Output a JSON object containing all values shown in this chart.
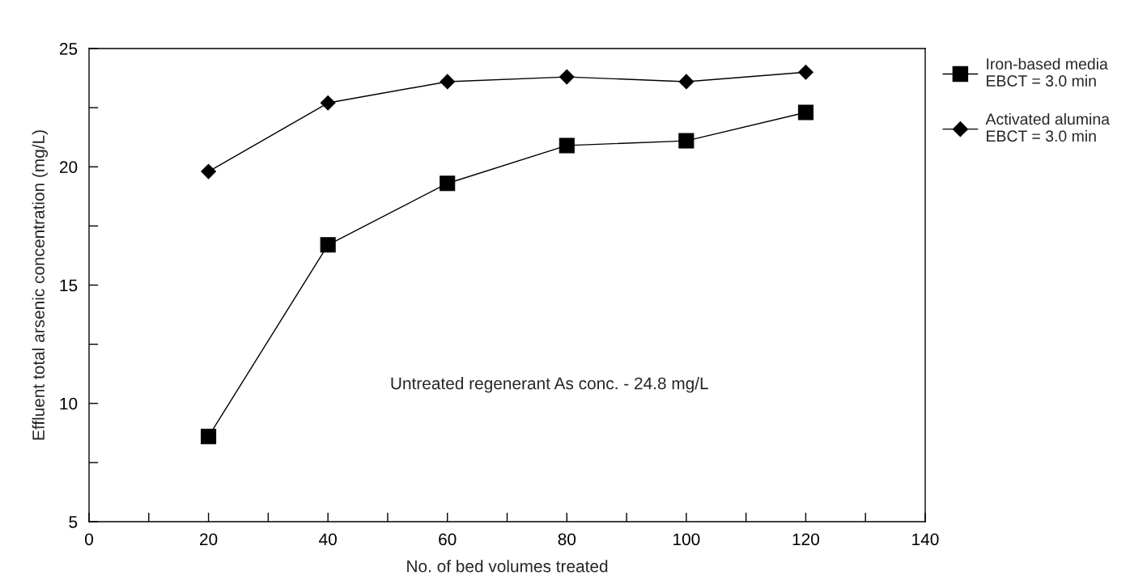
{
  "chart_data": {
    "type": "line",
    "xlabel": "No. of bed volumes treated",
    "ylabel": "Effluent total arsenic concentration (mg/L)",
    "x": [
      20,
      40,
      60,
      80,
      100,
      120
    ],
    "series": [
      {
        "name": "Iron-based media\nEBCT = 3.0 min",
        "color": "#000000",
        "marker": "square",
        "values": [
          8.6,
          16.7,
          19.3,
          20.9,
          21.1,
          22.3
        ]
      },
      {
        "name": "Activated alumina\nEBCT = 3.0 min",
        "color": "#000000",
        "marker": "diamond",
        "values": [
          19.8,
          22.7,
          23.6,
          23.8,
          23.6,
          24.0
        ]
      }
    ],
    "xlim": [
      0,
      140
    ],
    "xticks": [
      0,
      {
        "value": 10,
        "label": null
      },
      20,
      {
        "value": 30,
        "label": null
      },
      40,
      {
        "value": 50,
        "label": null
      },
      60,
      {
        "value": 70,
        "label": null
      },
      80,
      {
        "value": 90,
        "label": null
      },
      100,
      {
        "value": 110,
        "label": null
      },
      120,
      {
        "value": 130,
        "label": null
      },
      140
    ],
    "ylim": [
      5,
      25
    ],
    "yticks": [
      5,
      {
        "value": 7.5,
        "label": null
      },
      10,
      {
        "value": 12.5,
        "label": null
      },
      15,
      {
        "value": 17.5,
        "label": null
      },
      20,
      {
        "value": 22.5,
        "label": null
      },
      25
    ],
    "annotations": [
      "Untreated regenerant As conc. - 24.8 mg/L"
    ],
    "legend": "right",
    "grid": false,
    "line_style": "solid"
  }
}
